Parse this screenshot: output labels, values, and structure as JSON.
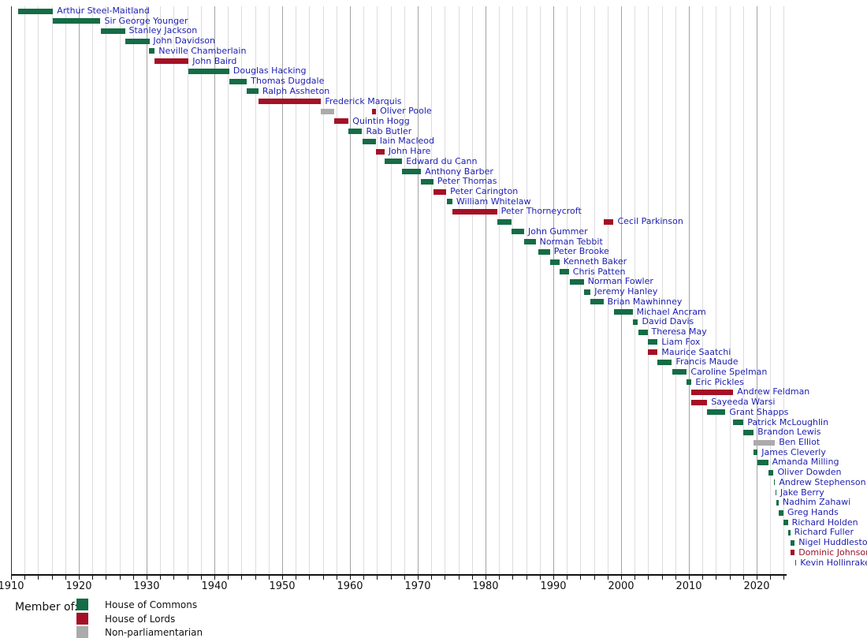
{
  "chart_data": {
    "type": "gantt",
    "title": "",
    "xlabel": "",
    "ylabel": "",
    "x_axis": {
      "range": [
        1910,
        2026
      ],
      "minor_grid_interval_years": 2,
      "tick_interval_years": 2,
      "label_interval_years": 10,
      "tick_labels": [
        "1910",
        "1920",
        "1930",
        "1940",
        "1950",
        "1960",
        "1970",
        "1980",
        "1990",
        "2000",
        "2010",
        "2020"
      ]
    },
    "grid": true,
    "label_color_default": "#2121b2",
    "legend": {
      "title": "Member of:",
      "position": "bottom-left",
      "entries": [
        {
          "key": "commons",
          "label": "House of Commons",
          "color": "#156c46"
        },
        {
          "key": "lords",
          "label": "House of Lords",
          "color": "#a41126"
        },
        {
          "key": "nonparl",
          "label": "Non-parliamentarian",
          "color": "#ababab"
        }
      ]
    },
    "rows": [
      {
        "name": "Arthur Steel-Maitland",
        "segments": [
          {
            "start": 1911.0,
            "end": 1916.2,
            "member_of": "commons"
          }
        ]
      },
      {
        "name": "Sir George Younger",
        "segments": [
          {
            "start": 1916.2,
            "end": 1923.2,
            "member_of": "commons"
          }
        ]
      },
      {
        "name": "Stanley Jackson",
        "segments": [
          {
            "start": 1923.2,
            "end": 1926.8,
            "member_of": "commons"
          }
        ]
      },
      {
        "name": "John Davidson",
        "segments": [
          {
            "start": 1926.8,
            "end": 1930.4,
            "member_of": "commons"
          }
        ]
      },
      {
        "name": "Neville Chamberlain",
        "segments": [
          {
            "start": 1930.4,
            "end": 1931.2,
            "member_of": "commons"
          }
        ]
      },
      {
        "name": "John Baird",
        "segments": [
          {
            "start": 1931.2,
            "end": 1936.2,
            "member_of": "lords"
          }
        ]
      },
      {
        "name": "Douglas Hacking",
        "segments": [
          {
            "start": 1936.2,
            "end": 1942.2,
            "member_of": "commons"
          }
        ]
      },
      {
        "name": "Thomas Dugdale",
        "segments": [
          {
            "start": 1942.2,
            "end": 1944.8,
            "member_of": "commons"
          }
        ]
      },
      {
        "name": "Ralph Assheton",
        "segments": [
          {
            "start": 1944.8,
            "end": 1946.5,
            "member_of": "commons"
          }
        ]
      },
      {
        "name": "Frederick Marquis",
        "segments": [
          {
            "start": 1946.5,
            "end": 1955.75,
            "member_of": "lords"
          }
        ]
      },
      {
        "name": "Oliver Poole",
        "segments": [
          {
            "start": 1955.75,
            "end": 1957.7,
            "member_of": "nonparl"
          },
          {
            "start": 1963.3,
            "end": 1963.85,
            "member_of": "lords"
          }
        ]
      },
      {
        "name": "Quintin Hogg",
        "segments": [
          {
            "start": 1957.7,
            "end": 1959.8,
            "member_of": "lords"
          }
        ]
      },
      {
        "name": "Rab Butler",
        "segments": [
          {
            "start": 1959.8,
            "end": 1961.8,
            "member_of": "commons"
          }
        ]
      },
      {
        "name": "Iain Macleod",
        "segments": [
          {
            "start": 1961.8,
            "end": 1963.8,
            "member_of": "commons"
          }
        ]
      },
      {
        "name": "John Hare",
        "segments": [
          {
            "start": 1963.8,
            "end": 1965.1,
            "member_of": "lords"
          }
        ]
      },
      {
        "name": "Edward du Cann",
        "segments": [
          {
            "start": 1965.1,
            "end": 1967.7,
            "member_of": "commons"
          }
        ]
      },
      {
        "name": "Anthony Barber",
        "segments": [
          {
            "start": 1967.7,
            "end": 1970.5,
            "member_of": "commons"
          }
        ]
      },
      {
        "name": "Peter Thomas",
        "segments": [
          {
            "start": 1970.5,
            "end": 1972.3,
            "member_of": "commons"
          }
        ]
      },
      {
        "name": "Peter Carington",
        "segments": [
          {
            "start": 1972.3,
            "end": 1974.2,
            "member_of": "lords"
          }
        ]
      },
      {
        "name": "William Whitelaw",
        "segments": [
          {
            "start": 1974.35,
            "end": 1975.1,
            "member_of": "commons"
          }
        ]
      },
      {
        "name": "Peter Thorneycroft",
        "segments": [
          {
            "start": 1975.1,
            "end": 1981.7,
            "member_of": "lords"
          }
        ]
      },
      {
        "name": "Cecil Parkinson",
        "segments": [
          {
            "start": 1981.7,
            "end": 1983.8,
            "member_of": "commons"
          },
          {
            "start": 1997.4,
            "end": 1998.9,
            "member_of": "lords"
          }
        ]
      },
      {
        "name": "John Gummer",
        "segments": [
          {
            "start": 1983.8,
            "end": 1985.7,
            "member_of": "commons"
          }
        ]
      },
      {
        "name": "Norman Tebbit",
        "segments": [
          {
            "start": 1985.7,
            "end": 1987.4,
            "member_of": "commons"
          }
        ]
      },
      {
        "name": "Peter Brooke",
        "segments": [
          {
            "start": 1987.8,
            "end": 1989.5,
            "member_of": "commons"
          }
        ]
      },
      {
        "name": "Kenneth Baker",
        "segments": [
          {
            "start": 1989.5,
            "end": 1990.9,
            "member_of": "commons"
          }
        ]
      },
      {
        "name": "Chris Patten",
        "segments": [
          {
            "start": 1990.9,
            "end": 1992.3,
            "member_of": "commons"
          }
        ]
      },
      {
        "name": "Norman Fowler",
        "segments": [
          {
            "start": 1992.4,
            "end": 1994.5,
            "member_of": "commons"
          }
        ]
      },
      {
        "name": "Jeremy Hanley",
        "segments": [
          {
            "start": 1994.5,
            "end": 1995.5,
            "member_of": "commons"
          }
        ]
      },
      {
        "name": "Brian Mawhinney",
        "segments": [
          {
            "start": 1995.5,
            "end": 1997.4,
            "member_of": "commons"
          }
        ]
      },
      {
        "name": "Michael Ancram",
        "segments": [
          {
            "start": 1998.9,
            "end": 2001.7,
            "member_of": "commons"
          }
        ]
      },
      {
        "name": "David Davis",
        "segments": [
          {
            "start": 2001.7,
            "end": 2002.5,
            "member_of": "commons"
          }
        ]
      },
      {
        "name": "Theresa May",
        "segments": [
          {
            "start": 2002.5,
            "end": 2003.9,
            "member_of": "commons"
          }
        ]
      },
      {
        "name": "Liam Fox",
        "segments": [
          {
            "start": 2003.9,
            "end": 2005.4,
            "member_of": "commons"
          }
        ]
      },
      {
        "name": "Maurice Saatchi",
        "segments": [
          {
            "start": 2003.9,
            "end": 2005.4,
            "member_of": "lords"
          }
        ]
      },
      {
        "name": "Francis Maude",
        "segments": [
          {
            "start": 2005.4,
            "end": 2007.5,
            "member_of": "commons"
          }
        ]
      },
      {
        "name": "Caroline Spelman",
        "segments": [
          {
            "start": 2007.5,
            "end": 2009.7,
            "member_of": "commons"
          }
        ]
      },
      {
        "name": "Eric Pickles",
        "segments": [
          {
            "start": 2009.7,
            "end": 2010.4,
            "member_of": "commons"
          }
        ]
      },
      {
        "name": "Andrew Feldman",
        "segments": [
          {
            "start": 2010.4,
            "end": 2016.55,
            "member_of": "lords"
          }
        ]
      },
      {
        "name": "Sayeeda Warsi",
        "segments": [
          {
            "start": 2010.4,
            "end": 2012.7,
            "member_of": "lords"
          }
        ]
      },
      {
        "name": "Grant Shapps",
        "segments": [
          {
            "start": 2012.7,
            "end": 2015.4,
            "member_of": "commons"
          }
        ]
      },
      {
        "name": "Patrick McLoughlin",
        "segments": [
          {
            "start": 2016.55,
            "end": 2018.05,
            "member_of": "commons"
          }
        ]
      },
      {
        "name": "Brandon Lewis",
        "segments": [
          {
            "start": 2018.05,
            "end": 2019.55,
            "member_of": "commons"
          }
        ]
      },
      {
        "name": "Ben Elliot",
        "segments": [
          {
            "start": 2019.55,
            "end": 2022.7,
            "member_of": "nonparl"
          }
        ]
      },
      {
        "name": "James Cleverly",
        "segments": [
          {
            "start": 2019.55,
            "end": 2020.15,
            "member_of": "commons"
          }
        ]
      },
      {
        "name": "Amanda Milling",
        "segments": [
          {
            "start": 2020.15,
            "end": 2021.7,
            "member_of": "commons"
          }
        ]
      },
      {
        "name": "Oliver Dowden",
        "segments": [
          {
            "start": 2021.7,
            "end": 2022.5,
            "member_of": "commons"
          }
        ]
      },
      {
        "name": "Andrew Stephenson",
        "segments": [
          {
            "start": 2022.55,
            "end": 2022.72,
            "member_of": "commons"
          }
        ]
      },
      {
        "name": "Jake Berry",
        "segments": [
          {
            "start": 2022.75,
            "end": 2022.9,
            "member_of": "commons"
          }
        ]
      },
      {
        "name": "Nadhim Zahawi",
        "segments": [
          {
            "start": 2022.9,
            "end": 2023.25,
            "member_of": "commons"
          }
        ]
      },
      {
        "name": "Greg Hands",
        "segments": [
          {
            "start": 2023.3,
            "end": 2023.95,
            "member_of": "commons"
          }
        ]
      },
      {
        "name": "Richard Holden",
        "segments": [
          {
            "start": 2023.95,
            "end": 2024.6,
            "member_of": "commons"
          }
        ]
      },
      {
        "name": "Richard Fuller",
        "segments": [
          {
            "start": 2024.6,
            "end": 2024.95,
            "member_of": "commons"
          }
        ]
      },
      {
        "name": "Nigel Huddleston",
        "segments": [
          {
            "start": 2024.95,
            "end": 2025.6,
            "member_of": "commons"
          }
        ]
      },
      {
        "name": "Dominic Johnson",
        "label_color": "#9a1029",
        "segments": [
          {
            "start": 2024.95,
            "end": 2025.6,
            "member_of": "lords"
          }
        ]
      },
      {
        "name": "Kevin Hollinrake",
        "segments": [
          {
            "start": 2025.65,
            "end": 2025.85,
            "member_of": "commons"
          }
        ]
      }
    ]
  }
}
